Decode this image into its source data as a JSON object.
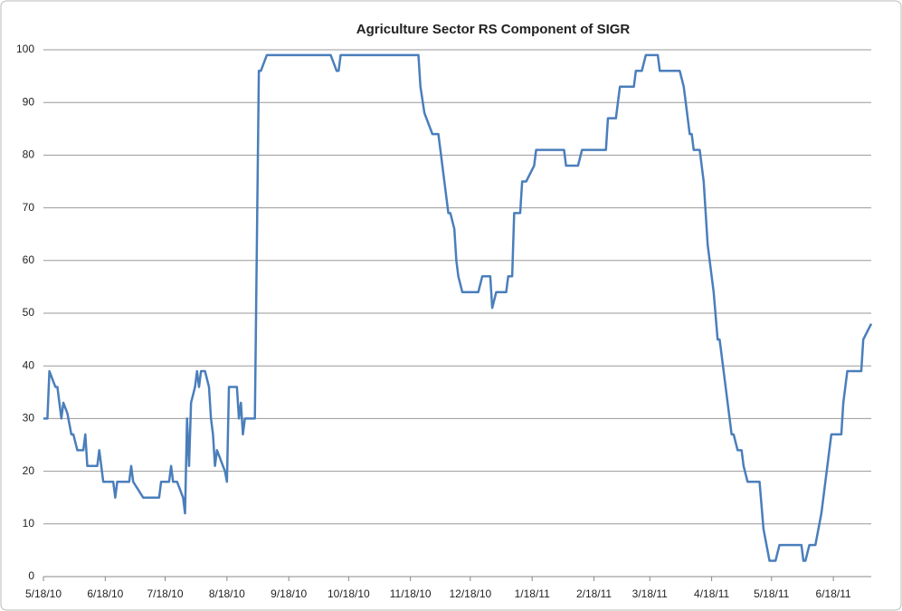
{
  "chart_data": {
    "type": "line",
    "title": "Agriculture  Sector  RS  Component of SIGR",
    "x": [
      "5/18/10",
      "5/20/10",
      "5/21/10",
      "5/23/10",
      "5/24/10",
      "5/25/10",
      "5/27/10",
      "5/28/10",
      "5/30/10",
      "6/1/10",
      "6/2/10",
      "6/4/10",
      "6/7/10",
      "6/8/10",
      "6/9/10",
      "6/14/10",
      "6/15/10",
      "6/17/10",
      "6/22/10",
      "6/23/10",
      "6/24/10",
      "6/30/10",
      "7/1/10",
      "7/2/10",
      "7/7/10",
      "7/15/10",
      "7/16/10",
      "7/20/10",
      "7/21/10",
      "7/22/10",
      "7/24/10",
      "7/27/10",
      "7/28/10",
      "7/29/10",
      "7/30/10",
      "7/31/10",
      "8/2/10",
      "8/3/10",
      "8/4/10",
      "8/5/10",
      "8/7/10",
      "8/9/10",
      "8/10/10",
      "8/11/10",
      "8/12/10",
      "8/13/10",
      "8/15/10",
      "8/17/10",
      "8/18/10",
      "8/19/10",
      "8/23/10",
      "8/24/10",
      "8/25/10",
      "8/26/10",
      "8/27/10",
      "9/1/10",
      "9/3/10",
      "9/4/10",
      "9/7/10",
      "10/9/10",
      "10/12/10",
      "10/13/10",
      "10/14/10",
      "11/22/10",
      "11/23/10",
      "11/25/10",
      "11/29/10",
      "12/2/10",
      "12/4/10",
      "12/6/10",
      "12/7/10",
      "12/8/10",
      "12/10/10",
      "12/11/10",
      "12/12/10",
      "12/14/10",
      "12/22/10",
      "12/24/10",
      "12/28/10",
      "12/29/10",
      "12/31/10",
      "1/5/11",
      "1/6/11",
      "1/8/11",
      "1/9/11",
      "1/12/11",
      "1/13/11",
      "1/15/11",
      "1/19/11",
      "1/20/11",
      "2/3/11",
      "2/4/11",
      "2/10/11",
      "2/12/11",
      "2/24/11",
      "2/25/11",
      "3/1/11",
      "3/3/11",
      "3/10/11",
      "3/11/11",
      "3/14/11",
      "3/16/11",
      "3/22/11",
      "3/23/11",
      "4/2/11",
      "4/4/11",
      "4/7/11",
      "4/8/11",
      "4/9/11",
      "4/12/11",
      "4/14/11",
      "4/16/11",
      "4/19/11",
      "4/21/11",
      "4/22/11",
      "4/23/11",
      "4/25/11",
      "4/27/11",
      "4/28/11",
      "4/29/11",
      "5/1/11",
      "5/3/11",
      "5/4/11",
      "5/6/11",
      "5/12/11",
      "5/14/11",
      "5/17/11",
      "5/20/11",
      "5/22/11",
      "6/2/11",
      "6/3/11",
      "6/4/11",
      "6/6/11",
      "6/9/11",
      "6/12/11",
      "6/14/11",
      "6/16/11",
      "6/17/11",
      "6/22/11",
      "6/23/11",
      "6/24/11",
      "6/25/11",
      "7/2/11",
      "7/3/11",
      "7/7/11"
    ],
    "series": [
      {
        "name": "Agriculture Sector RS Component",
        "color": "#4a7ebb",
        "values": [
          30,
          30,
          39,
          37,
          36,
          36,
          30,
          33,
          31,
          27,
          27,
          24,
          24,
          27,
          21,
          21,
          24,
          18,
          18,
          15,
          18,
          18,
          21,
          18,
          15,
          15,
          18,
          18,
          21,
          18,
          18,
          15,
          12,
          30,
          21,
          33,
          36,
          39,
          36,
          39,
          39,
          36,
          30,
          27,
          21,
          24,
          22,
          20,
          18,
          36,
          36,
          30,
          33,
          27,
          30,
          30,
          96,
          96,
          99,
          99,
          96,
          96,
          99,
          99,
          93,
          88,
          84,
          84,
          78,
          72,
          69,
          69,
          66,
          60,
          57,
          54,
          54,
          57,
          57,
          51,
          54,
          54,
          57,
          57,
          69,
          69,
          75,
          75,
          78,
          81,
          81,
          78,
          78,
          81,
          81,
          87,
          87,
          93,
          93,
          96,
          96,
          99,
          99,
          96,
          96,
          93,
          84,
          84,
          81,
          81,
          75,
          63,
          54,
          45,
          45,
          42,
          36,
          30,
          27,
          27,
          24,
          24,
          21,
          18,
          18,
          9,
          3,
          3,
          6,
          6,
          3,
          3,
          6,
          6,
          12,
          18,
          24,
          27,
          27,
          33,
          36,
          39,
          39,
          45,
          48
        ]
      }
    ],
    "xlim": [
      "5/18/10",
      "7/7/11"
    ],
    "xticks": [
      "5/18/10",
      "6/18/10",
      "7/18/10",
      "8/18/10",
      "9/18/10",
      "10/18/10",
      "11/18/10",
      "12/18/10",
      "1/18/11",
      "2/18/11",
      "3/18/11",
      "4/18/11",
      "5/18/11",
      "6/18/11"
    ],
    "ylim": [
      0,
      100
    ],
    "yticks": [
      0,
      10,
      20,
      30,
      40,
      50,
      60,
      70,
      80,
      90,
      100
    ],
    "grid": true
  }
}
